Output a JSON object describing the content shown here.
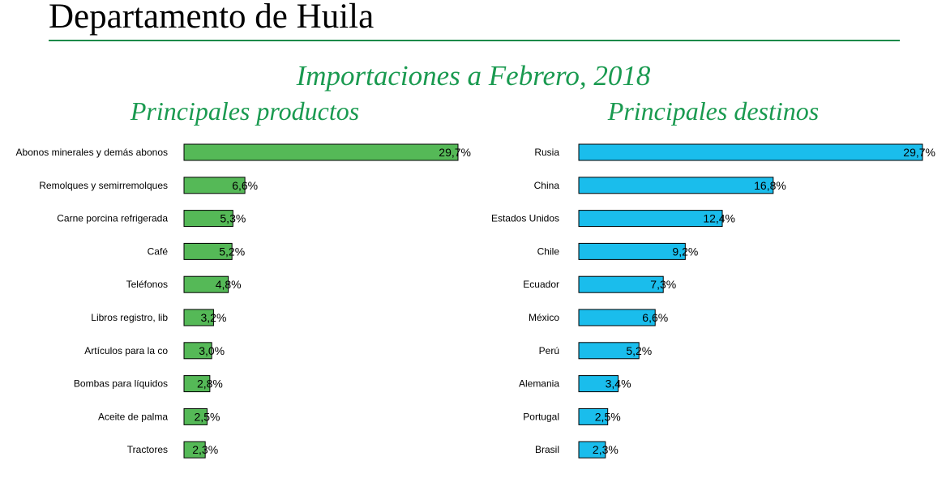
{
  "header": {
    "title": "Departamento de Huila"
  },
  "subtitle": "Importaciones a Febrero, 2018",
  "colors": {
    "products_bar": "#55b957",
    "destinations_bar": "#1abdec",
    "accent": "#1a9a50"
  },
  "chart_data": [
    {
      "type": "bar",
      "orientation": "horizontal",
      "title": "Principales productos",
      "categories": [
        "Abonos minerales y demás abonos",
        "Remolques y semirremolques",
        "Carne porcina refrigerada",
        "Café",
        "Teléfonos",
        "Libros registro, lib",
        "Artículos para la co",
        "Bombas para líquidos",
        "Aceite de palma",
        "Tractores"
      ],
      "values": [
        29.7,
        6.6,
        5.3,
        5.2,
        4.8,
        3.2,
        3.0,
        2.8,
        2.5,
        2.3
      ],
      "labels": [
        "29,7%",
        "6,6%",
        "5,3%",
        "5,2%",
        "4,8%",
        "3,2%",
        "3,0%",
        "2,8%",
        "2,5%",
        "2,3%"
      ],
      "unit": "%"
    },
    {
      "type": "bar",
      "orientation": "horizontal",
      "title": "Principales destinos",
      "categories": [
        "Rusia",
        "China",
        "Estados Unidos",
        "Chile",
        "Ecuador",
        "México",
        "Perú",
        "Alemania",
        "Portugal",
        "Brasil"
      ],
      "values": [
        29.7,
        16.8,
        12.4,
        9.2,
        7.3,
        6.6,
        5.2,
        3.4,
        2.5,
        2.3
      ],
      "labels": [
        "29,7%",
        "16,8%",
        "12,4%",
        "9,2%",
        "7,3%",
        "6,6%",
        "5,2%",
        "3,4%",
        "2,5%",
        "2,3%"
      ],
      "unit": "%"
    }
  ]
}
